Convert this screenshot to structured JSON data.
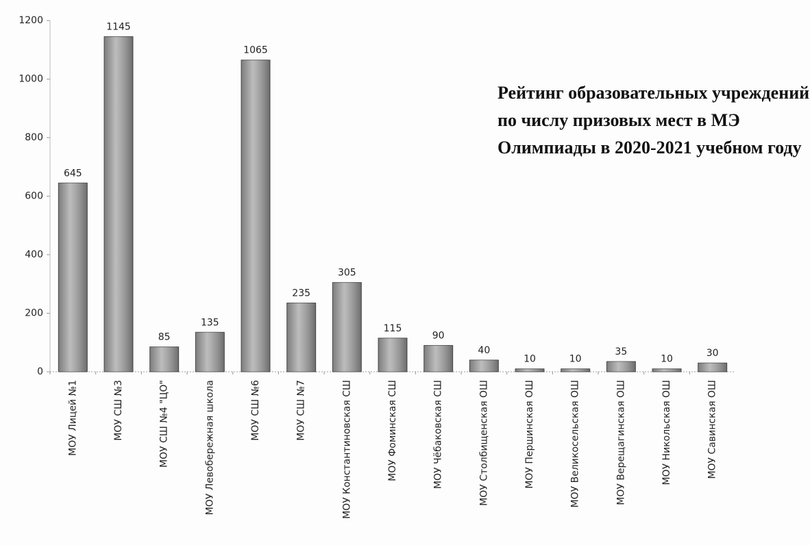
{
  "chart_data": {
    "type": "bar",
    "title": "Рейтинг образовательных учреждений по числу призовых мест в МЭ Олимпиады в 2020-2021 учебном году",
    "categories": [
      "МОУ Лицей №1",
      "МОУ СШ №3",
      "МОУ СШ №4 \"ЦО\"",
      "МОУ Левобережная школа",
      "МОУ СШ №6",
      "МОУ СШ №7",
      "МОУ Константиновская СШ",
      "МОУ Фоминская СШ",
      "МОУ Чёбаковская СШ",
      "МОУ Столбищенская ОШ",
      "МОУ Першинская ОШ",
      "МОУ Великосельская ОШ",
      "МОУ Верещагинская ОШ",
      "МОУ Никольская ОШ",
      "МОУ Савинская ОШ"
    ],
    "values": [
      645,
      1145,
      85,
      135,
      1065,
      235,
      305,
      115,
      90,
      40,
      10,
      10,
      35,
      10,
      30
    ],
    "color": "#a6a6a6",
    "ylim": [
      0,
      1200
    ],
    "yticks": [
      0,
      200,
      400,
      600,
      800,
      1000,
      1200
    ],
    "grid": false
  }
}
